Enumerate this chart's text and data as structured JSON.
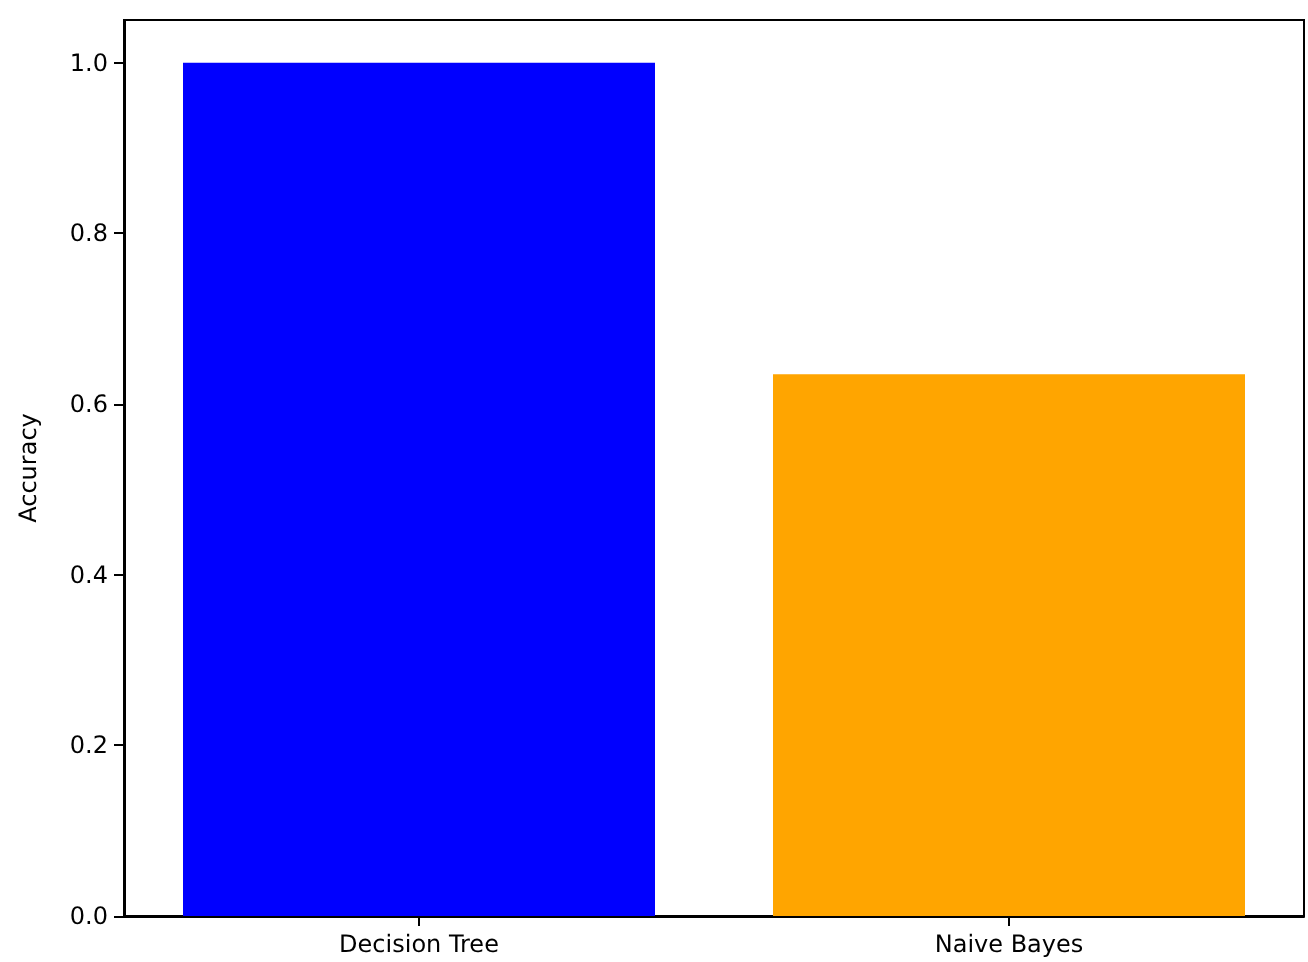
{
  "chart_data": {
    "type": "bar",
    "ylabel": "Accuracy",
    "categories": [
      "Decision Tree",
      "Naive Bayes"
    ],
    "values": [
      1.0,
      0.635
    ],
    "colors": [
      "#0000ff",
      "#ffa500"
    ],
    "ylim": [
      0,
      1.05
    ],
    "yticks": [
      {
        "value": 0,
        "label": "0.0"
      },
      {
        "value": 0.2,
        "label": "0.2"
      },
      {
        "value": 0.4,
        "label": "0.4"
      },
      {
        "value": 0.6,
        "label": "0.6"
      },
      {
        "value": 0.8,
        "label": "0.8"
      },
      {
        "value": 1.0,
        "label": "1.0"
      }
    ],
    "grid": false
  }
}
